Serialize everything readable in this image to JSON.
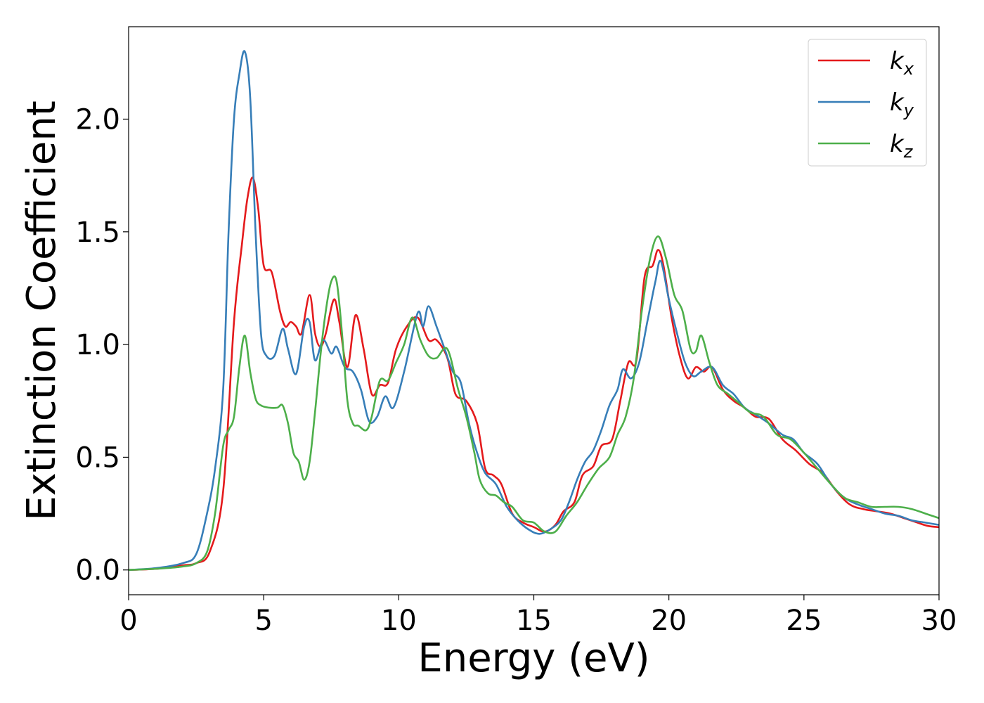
{
  "chart_data": {
    "type": "line",
    "title": "",
    "xlabel": "Energy (eV)",
    "ylabel": "Extinction Coefficient",
    "xlim": [
      0,
      30
    ],
    "ylim": [
      -0.11,
      2.41
    ],
    "x_ticks": [
      0,
      5,
      10,
      15,
      20,
      25,
      30
    ],
    "x_tick_labels": [
      "0",
      "5",
      "10",
      "15",
      "20",
      "25",
      "30"
    ],
    "y_ticks": [
      0.0,
      0.5,
      1.0,
      1.5,
      2.0
    ],
    "y_tick_labels": [
      "0.0",
      "0.5",
      "1.0",
      "1.5",
      "2.0"
    ],
    "grid": false,
    "legend_position": "top-right",
    "series": [
      {
        "name": "k",
        "subscript": "x",
        "color": "#e41a1c",
        "points": [
          [
            0,
            0
          ],
          [
            1,
            0.005
          ],
          [
            2,
            0.02
          ],
          [
            2.5,
            0.03
          ],
          [
            3,
            0.08
          ],
          [
            3.5,
            0.35
          ],
          [
            3.9,
            1.1
          ],
          [
            4.2,
            1.45
          ],
          [
            4.4,
            1.65
          ],
          [
            4.6,
            1.74
          ],
          [
            4.8,
            1.6
          ],
          [
            5.0,
            1.35
          ],
          [
            5.3,
            1.32
          ],
          [
            5.6,
            1.15
          ],
          [
            5.8,
            1.08
          ],
          [
            6.0,
            1.1
          ],
          [
            6.2,
            1.08
          ],
          [
            6.4,
            1.05
          ],
          [
            6.7,
            1.22
          ],
          [
            6.9,
            1.05
          ],
          [
            7.1,
            0.99
          ],
          [
            7.3,
            1.05
          ],
          [
            7.6,
            1.2
          ],
          [
            7.8,
            1.1
          ],
          [
            8.1,
            0.9
          ],
          [
            8.4,
            1.13
          ],
          [
            8.7,
            0.98
          ],
          [
            9.0,
            0.78
          ],
          [
            9.3,
            0.82
          ],
          [
            9.6,
            0.83
          ],
          [
            9.9,
            0.98
          ],
          [
            10.3,
            1.08
          ],
          [
            10.7,
            1.12
          ],
          [
            11.1,
            1.02
          ],
          [
            11.4,
            1.02
          ],
          [
            11.8,
            0.94
          ],
          [
            12.1,
            0.78
          ],
          [
            12.5,
            0.75
          ],
          [
            12.9,
            0.65
          ],
          [
            13.2,
            0.45
          ],
          [
            13.5,
            0.42
          ],
          [
            13.8,
            0.38
          ],
          [
            14.2,
            0.25
          ],
          [
            14.6,
            0.21
          ],
          [
            15.0,
            0.19
          ],
          [
            15.4,
            0.17
          ],
          [
            15.8,
            0.2
          ],
          [
            16.1,
            0.26
          ],
          [
            16.5,
            0.3
          ],
          [
            16.8,
            0.42
          ],
          [
            17.2,
            0.46
          ],
          [
            17.5,
            0.55
          ],
          [
            17.9,
            0.58
          ],
          [
            18.2,
            0.75
          ],
          [
            18.5,
            0.92
          ],
          [
            18.8,
            0.93
          ],
          [
            19.1,
            1.3
          ],
          [
            19.4,
            1.35
          ],
          [
            19.6,
            1.42
          ],
          [
            19.8,
            1.35
          ],
          [
            20.1,
            1.12
          ],
          [
            20.4,
            0.95
          ],
          [
            20.7,
            0.85
          ],
          [
            21.0,
            0.9
          ],
          [
            21.3,
            0.88
          ],
          [
            21.6,
            0.9
          ],
          [
            22.0,
            0.8
          ],
          [
            22.4,
            0.75
          ],
          [
            22.8,
            0.72
          ],
          [
            23.2,
            0.68
          ],
          [
            23.7,
            0.67
          ],
          [
            24.2,
            0.58
          ],
          [
            24.7,
            0.53
          ],
          [
            25.2,
            0.47
          ],
          [
            25.7,
            0.43
          ],
          [
            26.2,
            0.35
          ],
          [
            26.7,
            0.29
          ],
          [
            27.2,
            0.27
          ],
          [
            27.7,
            0.26
          ],
          [
            28.2,
            0.25
          ],
          [
            28.7,
            0.23
          ],
          [
            29.2,
            0.21
          ],
          [
            29.6,
            0.195
          ],
          [
            30,
            0.19
          ]
        ]
      },
      {
        "name": "k",
        "subscript": "y",
        "color": "#377eb8",
        "points": [
          [
            0,
            0
          ],
          [
            1,
            0.008
          ],
          [
            2,
            0.03
          ],
          [
            2.5,
            0.07
          ],
          [
            2.9,
            0.25
          ],
          [
            3.2,
            0.45
          ],
          [
            3.5,
            0.8
          ],
          [
            3.7,
            1.5
          ],
          [
            3.9,
            2.0
          ],
          [
            4.1,
            2.2
          ],
          [
            4.3,
            2.3
          ],
          [
            4.5,
            2.1
          ],
          [
            4.7,
            1.5
          ],
          [
            4.9,
            1.05
          ],
          [
            5.1,
            0.95
          ],
          [
            5.4,
            0.95
          ],
          [
            5.7,
            1.07
          ],
          [
            5.9,
            0.98
          ],
          [
            6.2,
            0.87
          ],
          [
            6.5,
            1.08
          ],
          [
            6.7,
            1.1
          ],
          [
            6.9,
            0.93
          ],
          [
            7.2,
            1.02
          ],
          [
            7.5,
            0.96
          ],
          [
            7.7,
            0.99
          ],
          [
            8.0,
            0.9
          ],
          [
            8.3,
            0.88
          ],
          [
            8.6,
            0.8
          ],
          [
            8.9,
            0.66
          ],
          [
            9.2,
            0.68
          ],
          [
            9.5,
            0.77
          ],
          [
            9.8,
            0.72
          ],
          [
            10.2,
            0.88
          ],
          [
            10.7,
            1.14
          ],
          [
            10.9,
            1.08
          ],
          [
            11.1,
            1.17
          ],
          [
            11.4,
            1.08
          ],
          [
            11.7,
            0.98
          ],
          [
            12.0,
            0.88
          ],
          [
            12.3,
            0.83
          ],
          [
            12.6,
            0.65
          ],
          [
            12.9,
            0.52
          ],
          [
            13.2,
            0.43
          ],
          [
            13.6,
            0.38
          ],
          [
            14.0,
            0.28
          ],
          [
            14.4,
            0.22
          ],
          [
            14.8,
            0.18
          ],
          [
            15.2,
            0.16
          ],
          [
            15.6,
            0.18
          ],
          [
            16.0,
            0.22
          ],
          [
            16.3,
            0.3
          ],
          [
            16.6,
            0.4
          ],
          [
            16.9,
            0.48
          ],
          [
            17.2,
            0.53
          ],
          [
            17.5,
            0.62
          ],
          [
            17.8,
            0.73
          ],
          [
            18.1,
            0.8
          ],
          [
            18.3,
            0.89
          ],
          [
            18.6,
            0.85
          ],
          [
            18.9,
            0.92
          ],
          [
            19.2,
            1.1
          ],
          [
            19.5,
            1.28
          ],
          [
            19.7,
            1.37
          ],
          [
            20.0,
            1.2
          ],
          [
            20.3,
            1.05
          ],
          [
            20.6,
            0.92
          ],
          [
            20.9,
            0.86
          ],
          [
            21.2,
            0.88
          ],
          [
            21.6,
            0.9
          ],
          [
            22.0,
            0.82
          ],
          [
            22.4,
            0.78
          ],
          [
            22.8,
            0.72
          ],
          [
            23.2,
            0.69
          ],
          [
            23.7,
            0.65
          ],
          [
            24.2,
            0.6
          ],
          [
            24.6,
            0.58
          ],
          [
            25.0,
            0.52
          ],
          [
            25.5,
            0.47
          ],
          [
            26.0,
            0.38
          ],
          [
            26.5,
            0.32
          ],
          [
            27.0,
            0.29
          ],
          [
            27.5,
            0.27
          ],
          [
            28.0,
            0.25
          ],
          [
            28.5,
            0.24
          ],
          [
            29.0,
            0.22
          ],
          [
            29.5,
            0.21
          ],
          [
            30,
            0.2
          ]
        ]
      },
      {
        "name": "k",
        "subscript": "z",
        "color": "#4daf4a",
        "points": [
          [
            0,
            0
          ],
          [
            1,
            0.005
          ],
          [
            2,
            0.015
          ],
          [
            2.5,
            0.03
          ],
          [
            2.9,
            0.08
          ],
          [
            3.2,
            0.25
          ],
          [
            3.5,
            0.55
          ],
          [
            3.7,
            0.62
          ],
          [
            3.9,
            0.68
          ],
          [
            4.1,
            0.9
          ],
          [
            4.3,
            1.04
          ],
          [
            4.5,
            0.88
          ],
          [
            4.7,
            0.76
          ],
          [
            4.9,
            0.73
          ],
          [
            5.2,
            0.72
          ],
          [
            5.5,
            0.72
          ],
          [
            5.7,
            0.73
          ],
          [
            5.9,
            0.65
          ],
          [
            6.1,
            0.52
          ],
          [
            6.3,
            0.48
          ],
          [
            6.5,
            0.4
          ],
          [
            6.7,
            0.48
          ],
          [
            6.9,
            0.7
          ],
          [
            7.1,
            0.95
          ],
          [
            7.3,
            1.15
          ],
          [
            7.5,
            1.28
          ],
          [
            7.7,
            1.28
          ],
          [
            7.9,
            1.05
          ],
          [
            8.1,
            0.75
          ],
          [
            8.3,
            0.65
          ],
          [
            8.5,
            0.64
          ],
          [
            8.8,
            0.62
          ],
          [
            9.0,
            0.68
          ],
          [
            9.3,
            0.84
          ],
          [
            9.6,
            0.84
          ],
          [
            9.9,
            0.92
          ],
          [
            10.2,
            1.0
          ],
          [
            10.5,
            1.12
          ],
          [
            10.8,
            1.02
          ],
          [
            11.1,
            0.95
          ],
          [
            11.4,
            0.94
          ],
          [
            11.8,
            0.98
          ],
          [
            12.2,
            0.8
          ],
          [
            12.5,
            0.68
          ],
          [
            12.8,
            0.52
          ],
          [
            13.0,
            0.4
          ],
          [
            13.3,
            0.34
          ],
          [
            13.6,
            0.33
          ],
          [
            13.9,
            0.3
          ],
          [
            14.2,
            0.28
          ],
          [
            14.6,
            0.22
          ],
          [
            15.0,
            0.21
          ],
          [
            15.4,
            0.17
          ],
          [
            15.8,
            0.17
          ],
          [
            16.2,
            0.24
          ],
          [
            16.6,
            0.3
          ],
          [
            17.0,
            0.38
          ],
          [
            17.4,
            0.45
          ],
          [
            17.8,
            0.5
          ],
          [
            18.1,
            0.6
          ],
          [
            18.4,
            0.68
          ],
          [
            18.7,
            0.85
          ],
          [
            19.0,
            1.15
          ],
          [
            19.3,
            1.38
          ],
          [
            19.6,
            1.48
          ],
          [
            19.9,
            1.38
          ],
          [
            20.2,
            1.22
          ],
          [
            20.5,
            1.15
          ],
          [
            20.8,
            0.98
          ],
          [
            21.0,
            0.97
          ],
          [
            21.2,
            1.04
          ],
          [
            21.5,
            0.92
          ],
          [
            21.8,
            0.82
          ],
          [
            22.2,
            0.78
          ],
          [
            22.6,
            0.74
          ],
          [
            23.0,
            0.7
          ],
          [
            23.5,
            0.68
          ],
          [
            24.0,
            0.6
          ],
          [
            24.5,
            0.58
          ],
          [
            25.0,
            0.52
          ],
          [
            25.5,
            0.45
          ],
          [
            26.0,
            0.38
          ],
          [
            26.5,
            0.32
          ],
          [
            27.0,
            0.3
          ],
          [
            27.5,
            0.28
          ],
          [
            28.0,
            0.28
          ],
          [
            28.5,
            0.28
          ],
          [
            29.0,
            0.27
          ],
          [
            29.5,
            0.25
          ],
          [
            30,
            0.23
          ]
        ]
      }
    ]
  }
}
